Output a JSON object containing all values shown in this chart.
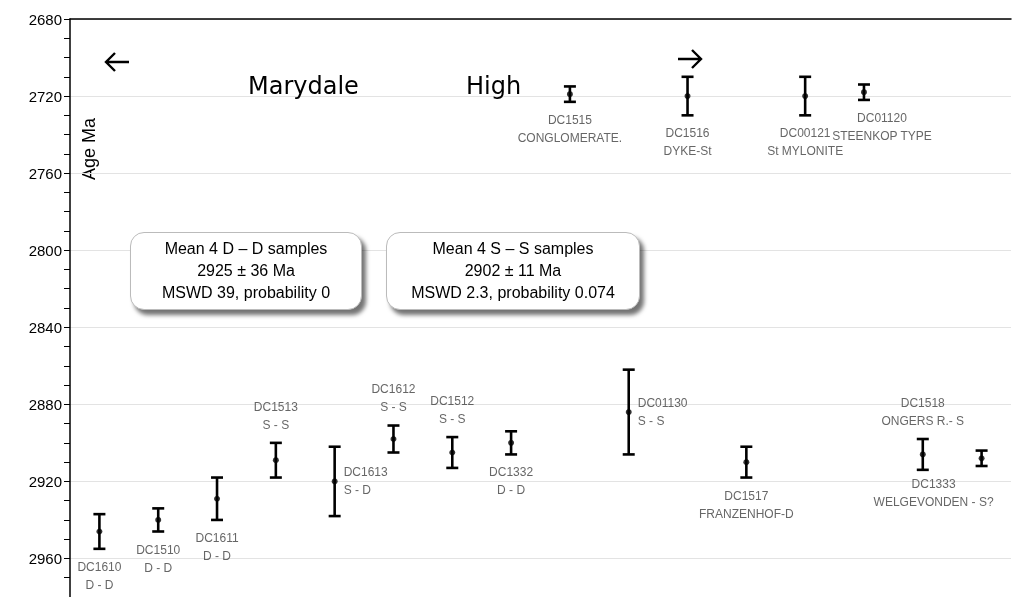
{
  "chart_data": {
    "type": "scatter",
    "ylabel": "Age Ma",
    "grid": "y",
    "tick_labels": "y",
    "categories": [
      null,
      null,
      null,
      null,
      null,
      null,
      null,
      null,
      null,
      null,
      null,
      null,
      null,
      null,
      null,
      null
    ],
    "values": [
      2946,
      2940,
      2929,
      2909,
      2920,
      2898,
      2905,
      2900,
      2719,
      2884,
      2720,
      2910,
      2720,
      2718,
      2906,
      2908
    ],
    "errors": [
      9,
      6,
      11,
      9,
      18,
      7,
      8,
      6,
      4,
      22,
      10,
      8,
      10,
      4,
      8,
      4
    ],
    "value_labels": [
      "DC1610\nD - D",
      "DC1510\nD - D",
      "DC1611\nD - D",
      "DC1513\nS - S",
      "DC1613\nS - D",
      "DC1612\nS - S",
      "DC1512\nS - S",
      "DC1332\nD - D",
      "DC1515\nCONGLOMERATE.",
      "DC01130\nS - S",
      "DC1516\nDYKE-St",
      "DC1517\nFRANZENHOF-D",
      "DC00121\nSt MYLONITE",
      "DC01120\nSTEENKOP TYPE",
      "DC1518\nONGERS R.- S",
      "DC1333\nWELGEVONDEN - S?"
    ],
    "color": "#000000",
    "ylim": [
      2980,
      2680
    ],
    "yticks": [
      2680,
      {
        "value": 2690,
        "label": null
      },
      {
        "value": 2700,
        "label": null
      },
      {
        "value": 2710,
        "label": null
      },
      2720,
      {
        "value": 2730,
        "label": null
      },
      {
        "value": 2740,
        "label": null
      },
      {
        "value": 2750,
        "label": null
      },
      2760,
      {
        "value": 2770,
        "label": null
      },
      {
        "value": 2780,
        "label": null
      },
      {
        "value": 2790,
        "label": null
      },
      2800,
      {
        "value": 2810,
        "label": null
      },
      {
        "value": 2820,
        "label": null
      },
      {
        "value": 2830,
        "label": null
      },
      2840,
      {
        "value": 2850,
        "label": null
      },
      {
        "value": 2860,
        "label": null
      },
      {
        "value": 2870,
        "label": null
      },
      2880,
      {
        "value": 2890,
        "label": null
      },
      {
        "value": 2900,
        "label": null
      },
      {
        "value": 2910,
        "label": null
      },
      2920,
      {
        "value": 2930,
        "label": null
      },
      {
        "value": 2940,
        "label": null
      },
      {
        "value": 2950,
        "label": null
      },
      2960,
      {
        "value": 2970,
        "label": null
      }
    ],
    "annotations": [
      "Marydale",
      "High",
      "Mean 4 D – D samples\n2925 ± 36 Ma\nMSWD 39, probability 0",
      "Mean 4 S – S samples\n2902 ± 11 Ma\nMSWD 2.3, probability 0.074"
    ]
  }
}
